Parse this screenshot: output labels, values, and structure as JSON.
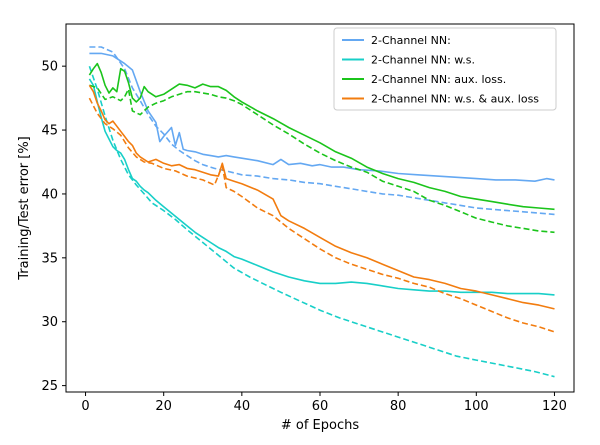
{
  "chart_data": {
    "type": "line",
    "xlabel": "# of Epochs",
    "ylabel": "Training/Test error [%]",
    "xlim": [
      -5,
      125
    ],
    "ylim": [
      24.5,
      53.3
    ],
    "xticks": [
      0,
      20,
      40,
      60,
      80,
      100,
      120
    ],
    "yticks": [
      25,
      30,
      35,
      40,
      45,
      50
    ],
    "grid": false,
    "legend_position": "top-right",
    "series": [
      {
        "name": "2-Channel NN:",
        "color": "#64a8f2",
        "solid": {
          "x": [
            1,
            4,
            7,
            10,
            12,
            14,
            16,
            18,
            19,
            20,
            22,
            23,
            24,
            25,
            26,
            28,
            30,
            32,
            34,
            36,
            38,
            40,
            44,
            48,
            50,
            52,
            55,
            58,
            60,
            63,
            66,
            70,
            75,
            80,
            85,
            90,
            95,
            100,
            105,
            110,
            115,
            118,
            120
          ],
          "y": [
            51,
            51,
            50.8,
            50.2,
            49.7,
            48,
            46.5,
            45.6,
            44.1,
            44.5,
            45.2,
            43.8,
            44.8,
            43.5,
            43.4,
            43.3,
            43.1,
            43,
            42.9,
            43,
            42.9,
            42.8,
            42.6,
            42.3,
            42.7,
            42.3,
            42.4,
            42.2,
            42.3,
            42.1,
            42.1,
            41.9,
            41.8,
            41.6,
            41.5,
            41.4,
            41.3,
            41.2,
            41.1,
            41.1,
            41,
            41.2,
            41.1
          ]
        },
        "dashed": {
          "x": [
            1,
            4,
            7,
            10,
            12,
            14,
            16,
            18,
            20,
            22,
            24,
            26,
            28,
            30,
            33,
            36,
            40,
            44,
            48,
            52,
            56,
            60,
            64,
            68,
            72,
            76,
            80,
            84,
            88,
            92,
            96,
            100,
            104,
            108,
            112,
            116,
            120
          ],
          "y": [
            51.5,
            51.5,
            51.1,
            49.8,
            48.3,
            47.3,
            46.2,
            45.3,
            44.7,
            43.9,
            43.4,
            43,
            42.6,
            42.3,
            42,
            41.8,
            41.5,
            41.4,
            41.2,
            41.1,
            40.9,
            40.8,
            40.6,
            40.4,
            40.2,
            40,
            39.9,
            39.7,
            39.5,
            39.3,
            39.1,
            38.9,
            38.8,
            38.7,
            38.6,
            38.5,
            38.4
          ]
        }
      },
      {
        "name": "2-Channel NN: w.s.",
        "color": "#18cfc8",
        "solid": {
          "x": [
            1,
            2,
            3,
            4,
            5,
            6,
            7,
            8,
            9,
            10,
            11,
            12,
            13,
            14,
            15,
            16,
            18,
            20,
            22,
            24,
            26,
            28,
            30,
            32,
            34,
            36,
            38,
            40,
            44,
            48,
            52,
            56,
            60,
            64,
            68,
            72,
            76,
            80,
            84,
            88,
            92,
            96,
            100,
            104,
            108,
            112,
            116,
            120
          ],
          "y": [
            49,
            48.5,
            47.2,
            46,
            44.9,
            44.3,
            43.7,
            43.4,
            43.2,
            42.7,
            41.9,
            41.2,
            41,
            40.6,
            40.3,
            40.1,
            39.5,
            39,
            38.5,
            38,
            37.5,
            37,
            36.6,
            36.2,
            35.8,
            35.5,
            35.1,
            34.9,
            34.4,
            33.9,
            33.5,
            33.2,
            33,
            33,
            33.1,
            33,
            32.8,
            32.6,
            32.5,
            32.4,
            32.4,
            32.3,
            32.3,
            32.3,
            32.2,
            32.2,
            32.2,
            32.1
          ]
        },
        "dashed": {
          "x": [
            1,
            3,
            5,
            7,
            9,
            11,
            13,
            15,
            17,
            20,
            23,
            26,
            30,
            34,
            38,
            42,
            46,
            50,
            55,
            60,
            65,
            70,
            75,
            80,
            85,
            90,
            95,
            100,
            105,
            110,
            115,
            120
          ],
          "y": [
            50,
            48.2,
            46.1,
            44.2,
            42.7,
            41.5,
            40.7,
            40,
            39.3,
            38.7,
            38,
            37.2,
            36.2,
            35.2,
            34.2,
            33.5,
            32.9,
            32.3,
            31.6,
            30.9,
            30.3,
            29.8,
            29.3,
            28.8,
            28.3,
            27.8,
            27.3,
            27,
            26.7,
            26.4,
            26.1,
            25.7
          ]
        }
      },
      {
        "name": "2-Channel NN: aux. loss.",
        "color": "#1bc41b",
        "solid": {
          "x": [
            1,
            2,
            3,
            4,
            5,
            6,
            7,
            8,
            9,
            10,
            11,
            12,
            13,
            14,
            15,
            16,
            18,
            20,
            22,
            24,
            26,
            28,
            30,
            32,
            34,
            36,
            38,
            40,
            44,
            48,
            52,
            56,
            60,
            64,
            68,
            72,
            76,
            80,
            84,
            88,
            92,
            96,
            100,
            104,
            108,
            112,
            116,
            120
          ],
          "y": [
            49.3,
            49.8,
            50.2,
            49.5,
            48.5,
            47.9,
            48.3,
            48,
            49.8,
            49.6,
            48.7,
            47.5,
            47.2,
            47.5,
            48.4,
            48,
            47.6,
            47.8,
            48.2,
            48.6,
            48.5,
            48.3,
            48.6,
            48.4,
            48.4,
            48.1,
            47.6,
            47.2,
            46.5,
            45.9,
            45.2,
            44.6,
            44,
            43.3,
            42.8,
            42.1,
            41.6,
            41.2,
            40.9,
            40.5,
            40.2,
            39.8,
            39.6,
            39.4,
            39.2,
            39,
            38.9,
            38.8
          ]
        },
        "dashed": {
          "x": [
            1,
            3,
            5,
            7,
            9,
            10,
            11,
            12,
            14,
            16,
            18,
            20,
            22,
            24,
            26,
            28,
            30,
            32,
            34,
            36,
            38,
            40,
            44,
            48,
            52,
            56,
            60,
            64,
            68,
            72,
            76,
            80,
            84,
            88,
            92,
            96,
            100,
            104,
            108,
            112,
            116,
            120
          ],
          "y": [
            48.5,
            48.3,
            47.4,
            47.6,
            47.3,
            47.6,
            48.2,
            46.5,
            46.2,
            46.8,
            47.1,
            47.3,
            47.6,
            47.8,
            48,
            48,
            47.9,
            47.8,
            47.6,
            47.5,
            47.3,
            47,
            46.2,
            45.4,
            44.7,
            43.9,
            43.2,
            42.6,
            42.1,
            41.7,
            41,
            40.6,
            40.2,
            39.5,
            39.1,
            38.6,
            38.1,
            37.8,
            37.5,
            37.3,
            37.1,
            37
          ]
        }
      },
      {
        "name": "2-Channel NN: w.s. & aux. loss",
        "color": "#f27c0f",
        "solid": {
          "x": [
            1,
            2,
            3,
            4,
            5,
            6,
            7,
            8,
            9,
            10,
            11,
            12,
            13,
            14,
            16,
            18,
            20,
            22,
            24,
            26,
            28,
            30,
            32,
            34,
            35,
            36,
            38,
            40,
            44,
            48,
            50,
            52,
            56,
            60,
            64,
            68,
            72,
            76,
            80,
            84,
            88,
            92,
            96,
            100,
            104,
            108,
            112,
            116,
            120
          ],
          "y": [
            48.5,
            48,
            47.1,
            46.5,
            45.8,
            45.5,
            45.7,
            45.3,
            44.9,
            44.5,
            44.1,
            43.8,
            43.2,
            42.9,
            42.5,
            42.7,
            42.4,
            42.2,
            42.3,
            42,
            41.9,
            41.7,
            41.5,
            41.4,
            42.4,
            41.2,
            41,
            40.8,
            40.3,
            39.6,
            38.3,
            37.9,
            37.3,
            36.6,
            35.9,
            35.4,
            35,
            34.5,
            34,
            33.5,
            33.3,
            33,
            32.6,
            32.4,
            32.1,
            31.8,
            31.5,
            31.3,
            31
          ]
        },
        "dashed": {
          "x": [
            1,
            3,
            5,
            7,
            9,
            11,
            13,
            15,
            17,
            20,
            23,
            26,
            30,
            33,
            35,
            36,
            38,
            40,
            44,
            48,
            52,
            56,
            60,
            64,
            68,
            72,
            76,
            80,
            84,
            88,
            92,
            96,
            100,
            104,
            108,
            112,
            116,
            120
          ],
          "y": [
            47.5,
            46.3,
            45.5,
            45.1,
            44.6,
            43.6,
            42.9,
            42.5,
            42.4,
            42,
            41.8,
            41.4,
            41.1,
            40.7,
            42.2,
            40.5,
            40.2,
            39.8,
            38.9,
            38.3,
            37.3,
            36.5,
            35.7,
            35,
            34.5,
            34.1,
            33.7,
            33.4,
            33,
            32.7,
            32.2,
            31.8,
            31.3,
            30.8,
            30.3,
            29.9,
            29.6,
            29.2
          ]
        }
      }
    ]
  }
}
